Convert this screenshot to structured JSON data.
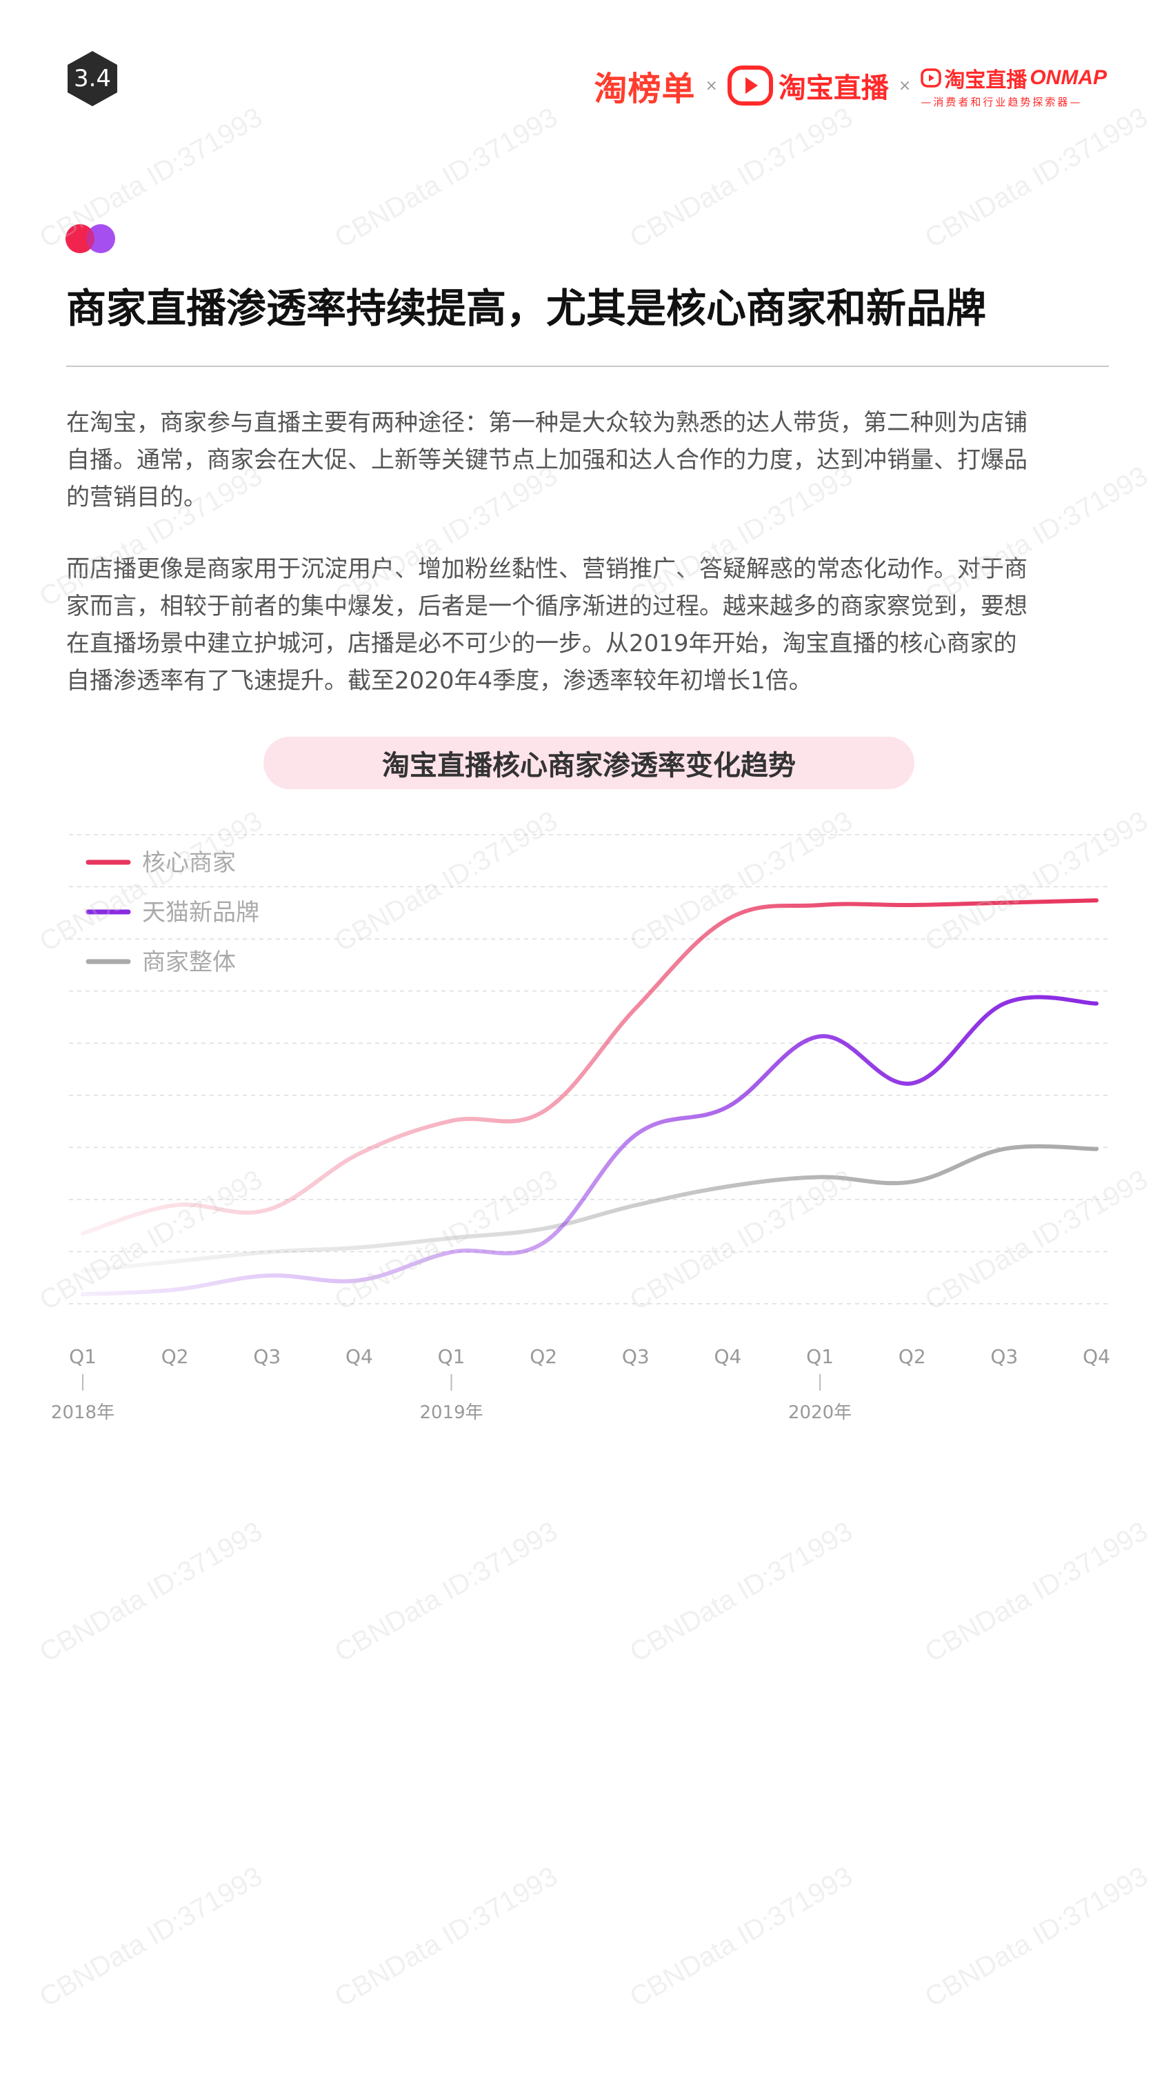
{
  "page": {
    "section_number": "3.4"
  },
  "header": {
    "logo_taobangdan": "淘榜单",
    "times_symbol_1": "×",
    "logo_taobao_live": "淘宝直播",
    "times_symbol_2": "×",
    "logo_onmap_cn": "淘宝直播",
    "logo_onmap_en": "ONMAP",
    "logo_onmap_sub": "—消费者和行业趋势探索器—",
    "brand_color": "#ff2a2a"
  },
  "article": {
    "title": "商家直播渗透率持续提高，尤其是核心商家和新品牌",
    "paragraphs": [
      [
        "在淘宝，商家参与直播主要有两种途径：第一种是大众较为熟悉的达人带货，第二种则为店铺",
        "自播。通常，商家会在大促、上新等关键节点上加强和达人合作的力度，达到冲销量、打爆品",
        "的营销目的。"
      ],
      [
        "而店播更像是商家用于沉淀用户、增加粉丝黏性、营销推广、答疑解惑的常态化动作。对于商",
        "家而言，相较于前者的集中爆发，后者是一个循序渐进的过程。越来越多的商家察觉到，要想",
        "在直播场景中建立护城河，店播是必不可少的一步。从2019年开始，淘宝直播的核心商家的",
        "自播渗透率有了飞速提升。截至2020年4季度，渗透率较年初增长1倍。"
      ]
    ]
  },
  "chart_data": {
    "type": "line",
    "title": "淘宝直播核心商家渗透率变化趋势",
    "x": [
      "Q1",
      "Q2",
      "Q3",
      "Q4",
      "Q1",
      "Q2",
      "Q3",
      "Q4",
      "Q1",
      "Q2",
      "Q3",
      "Q4"
    ],
    "year_labels": [
      {
        "label": "2018年",
        "index": 0
      },
      {
        "label": "2019年",
        "index": 4
      },
      {
        "label": "2020年",
        "index": 8
      }
    ],
    "ylim": [
      0,
      100
    ],
    "grid": true,
    "legend_position": "top-left",
    "y_axis_labels_shown": false,
    "series": [
      {
        "name": "核心商家",
        "color": "#e8365e",
        "values": [
          15,
          21,
          20,
          32,
          39,
          41,
          63,
          82,
          85,
          85,
          85.5,
          86
        ]
      },
      {
        "name": "天猫新品牌",
        "color": "#8a2be2",
        "values": [
          2,
          3,
          6,
          5,
          11,
          13,
          36,
          42,
          57,
          47,
          64,
          64
        ]
      },
      {
        "name": "商家整体",
        "color": "#aaaaaa",
        "values": [
          7,
          9,
          11,
          12,
          14,
          16,
          21,
          25,
          27,
          26,
          33,
          33
        ]
      }
    ]
  },
  "watermark": {
    "text": "CBNData ID:371993"
  }
}
